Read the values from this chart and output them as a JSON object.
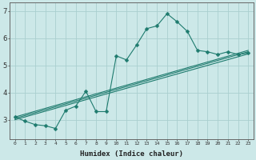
{
  "xlabel": "Humidex (Indice chaleur)",
  "ylabel": "",
  "bg_color": "#cce8e8",
  "line_color": "#1e7b6e",
  "grid_color": "#aacfcf",
  "xlim": [
    -0.5,
    23.5
  ],
  "ylim": [
    2.3,
    7.3
  ],
  "yticks": [
    3,
    4,
    5,
    6,
    7
  ],
  "xticks": [
    0,
    1,
    2,
    3,
    4,
    5,
    6,
    7,
    8,
    9,
    10,
    11,
    12,
    13,
    14,
    15,
    16,
    17,
    18,
    19,
    20,
    21,
    22,
    23
  ],
  "main_line": {
    "x": [
      0,
      1,
      2,
      3,
      4,
      5,
      6,
      7,
      8,
      9,
      10,
      11,
      12,
      13,
      14,
      15,
      16,
      17,
      18,
      19,
      20,
      21,
      22,
      23
    ],
    "y": [
      3.1,
      2.95,
      2.82,
      2.78,
      2.68,
      3.35,
      3.5,
      4.05,
      3.3,
      3.3,
      5.35,
      5.2,
      5.75,
      6.35,
      6.45,
      6.9,
      6.6,
      6.25,
      5.55,
      5.5,
      5.4,
      5.5,
      5.4,
      5.45
    ]
  },
  "reg_lines": [
    {
      "x": [
        0,
        23
      ],
      "y": [
        3.05,
        5.5
      ]
    },
    {
      "x": [
        0,
        23
      ],
      "y": [
        3.1,
        5.55
      ]
    },
    {
      "x": [
        0,
        23
      ],
      "y": [
        3.0,
        5.42
      ]
    }
  ]
}
